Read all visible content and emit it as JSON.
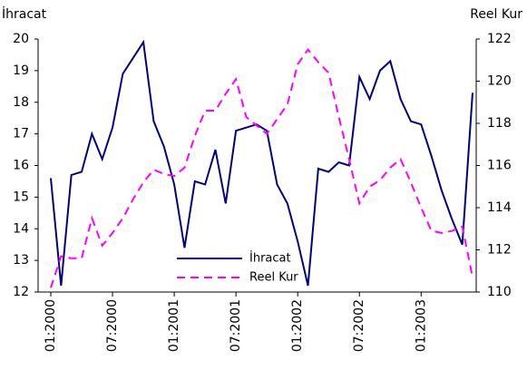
{
  "chart_data": {
    "type": "line",
    "y_label": "İhracat",
    "y2_label": "Reel Kur",
    "categories": [
      "01:2000",
      null,
      null,
      null,
      null,
      null,
      "07:2000",
      null,
      null,
      null,
      null,
      null,
      "01:2001",
      null,
      null,
      null,
      null,
      null,
      "07:2001",
      null,
      null,
      null,
      null,
      null,
      "01:2002",
      null,
      null,
      null,
      null,
      null,
      "07:2002",
      null,
      null,
      null,
      null,
      null,
      "01:2003",
      null,
      null,
      null,
      null,
      null
    ],
    "series": [
      {
        "name": "İhracat",
        "color": "#000080",
        "dash": false,
        "values": [
          15.6,
          12.2,
          15.7,
          15.8,
          17.0,
          16.2,
          17.2,
          18.9,
          19.4,
          19.9,
          17.4,
          16.6,
          15.4,
          13.4,
          15.5,
          15.4,
          16.5,
          14.8,
          17.1,
          17.2,
          17.3,
          17.1,
          15.4,
          14.8,
          13.6,
          12.2,
          15.9,
          15.8,
          16.1,
          16.0,
          18.8,
          18.1,
          19.0,
          19.3,
          18.1,
          17.4,
          17.3,
          16.3,
          15.2,
          14.3,
          13.5,
          18.3
        ]
      },
      {
        "name": "Reel Kur",
        "color": "#ff00ff",
        "dash": true,
        "axis": "y2",
        "values": [
          110.2,
          111.7,
          111.6,
          111.6,
          113.5,
          112.2,
          112.8,
          113.5,
          114.4,
          115.2,
          115.8,
          115.6,
          115.5,
          115.9,
          117.4,
          118.6,
          118.6,
          119.4,
          120.1,
          118.3,
          117.9,
          117.5,
          118.2,
          118.9,
          120.8,
          121.5,
          120.9,
          120.4,
          118.3,
          116.3,
          114.2,
          115.0,
          115.3,
          115.9,
          116.3,
          115.2,
          114.0,
          112.9,
          112.8,
          112.9,
          113.1,
          110.7
        ]
      }
    ],
    "ylim": [
      12,
      20
    ],
    "yticks": [
      12,
      13,
      14,
      15,
      16,
      17,
      18,
      19,
      20
    ],
    "y2lim": [
      110,
      122
    ],
    "y2ticks": [
      110,
      112,
      114,
      116,
      118,
      120,
      122
    ],
    "grid": false,
    "legend": "bottom-center"
  }
}
